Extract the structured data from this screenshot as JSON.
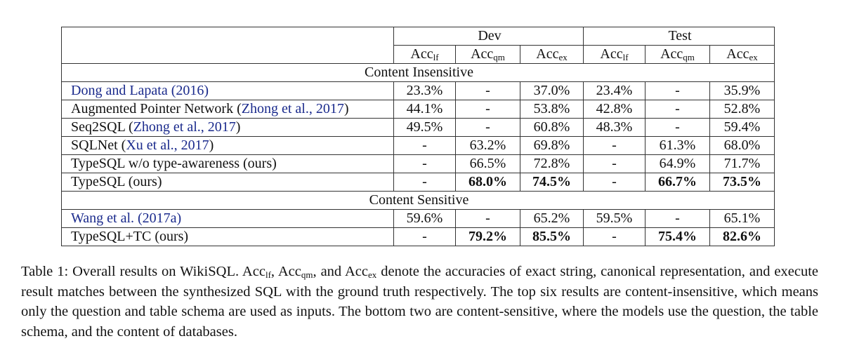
{
  "table": {
    "header_groups": [
      "Dev",
      "Test"
    ],
    "metric_base": "Acc",
    "metric_subs": [
      "lf",
      "qm",
      "ex",
      "lf",
      "qm",
      "ex"
    ],
    "sections": [
      {
        "title": "Content Insensitive",
        "rows": [
          {
            "model": "",
            "cite": "Dong and Lapata (2016)",
            "values": [
              "23.3%",
              "-",
              "37.0%",
              "23.4%",
              "-",
              "35.9%"
            ],
            "bold": [
              false,
              false,
              false,
              false,
              false,
              false
            ]
          },
          {
            "model": "Augmented Pointer Network (",
            "cite": "Zhong et al., 2017",
            "tail": ")",
            "values": [
              "44.1%",
              "-",
              "53.8%",
              "42.8%",
              "-",
              "52.8%"
            ],
            "bold": [
              false,
              false,
              false,
              false,
              false,
              false
            ]
          },
          {
            "model": "Seq2SQL (",
            "cite": "Zhong et al., 2017",
            "tail": ")",
            "values": [
              "49.5%",
              "-",
              "60.8%",
              "48.3%",
              "-",
              "59.4%"
            ],
            "bold": [
              false,
              false,
              false,
              false,
              false,
              false
            ]
          },
          {
            "model": "SQLNet (",
            "cite": "Xu et al., 2017",
            "tail": ")",
            "values": [
              "-",
              "63.2%",
              "69.8%",
              "-",
              "61.3%",
              "68.0%"
            ],
            "bold": [
              false,
              false,
              false,
              false,
              false,
              false
            ]
          },
          {
            "model": "TypeSQL w/o type-awareness (ours)",
            "cite": "",
            "values": [
              "-",
              "66.5%",
              "72.8%",
              "-",
              "64.9%",
              "71.7%"
            ],
            "bold": [
              false,
              false,
              false,
              false,
              false,
              false
            ]
          },
          {
            "model": "TypeSQL (ours)",
            "cite": "",
            "values": [
              "-",
              "68.0%",
              "74.5%",
              "-",
              "66.7%",
              "73.5%"
            ],
            "bold": [
              false,
              true,
              true,
              false,
              true,
              true
            ]
          }
        ]
      },
      {
        "title": "Content Sensitive",
        "rows": [
          {
            "model": "",
            "cite": "Wang et al. (2017a)",
            "values": [
              "59.6%",
              "-",
              "65.2%",
              "59.5%",
              "-",
              "65.1%"
            ],
            "bold": [
              false,
              false,
              false,
              false,
              false,
              false
            ]
          },
          {
            "model": "TypeSQL+TC (ours)",
            "cite": "",
            "values": [
              "-",
              "79.2%",
              "85.5%",
              "-",
              "75.4%",
              "82.6%"
            ],
            "bold": [
              false,
              true,
              true,
              false,
              true,
              true
            ]
          }
        ]
      }
    ]
  },
  "caption": {
    "p1": "Table 1: Overall results on WikiSQL. Acc",
    "s1": "lf",
    "p2": ", Acc",
    "s2": "qm",
    "p3": ", and Acc",
    "s3": "ex",
    "p4": " denote the accuracies of exact string, canonical representation, and execute result matches between the synthesized SQL with the ground truth respectively. The top six results are content-insensitive, which means only the question and table schema are used as inputs. The bottom two are content-sensitive, where the models use the question, the table schema, and the content of databases."
  }
}
